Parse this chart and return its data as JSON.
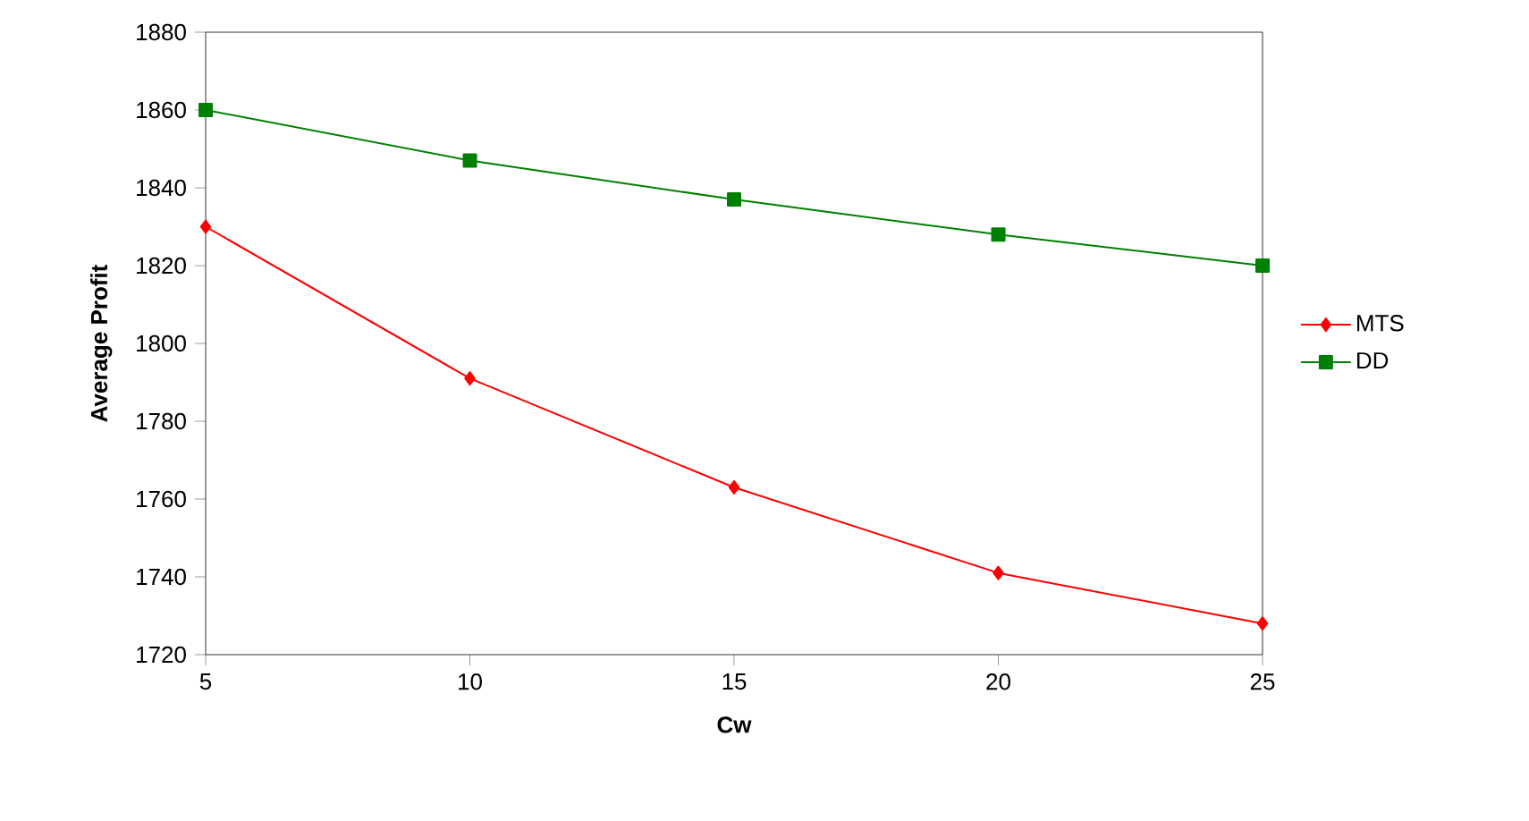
{
  "chart_data": {
    "type": "line",
    "xlabel": "Cw",
    "ylabel": "Average Profit",
    "x": [
      5,
      10,
      15,
      20,
      25
    ],
    "series": [
      {
        "name": "MTS",
        "color": "#ff0000",
        "marker": "diamond",
        "values": [
          1830,
          1791,
          1763,
          1741,
          1728
        ]
      },
      {
        "name": "DD",
        "color": "#008000",
        "marker": "square",
        "values": [
          1860,
          1847,
          1837,
          1828,
          1820
        ]
      }
    ],
    "xlim": [
      5,
      25
    ],
    "xticks": [
      5,
      10,
      15,
      20,
      25
    ],
    "ylim": [
      1720,
      1880
    ],
    "yticks": [
      1720,
      1740,
      1760,
      1780,
      1800,
      1820,
      1840,
      1860,
      1880
    ],
    "grid": false,
    "legend": "right",
    "line_style": "solid"
  }
}
